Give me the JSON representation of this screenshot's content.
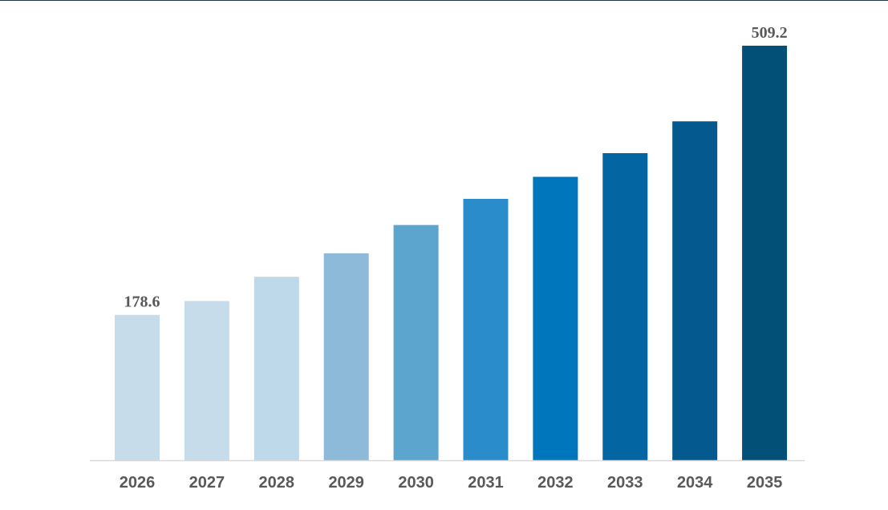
{
  "chart_data": {
    "type": "bar",
    "title": "",
    "xlabel": "",
    "ylabel": "",
    "categories": [
      "2026",
      "2027",
      "2028",
      "2029",
      "2030",
      "2031",
      "2032",
      "2033",
      "2034",
      "2035"
    ],
    "values": [
      178.6,
      195.6,
      225.3,
      254.2,
      289.0,
      321.1,
      348.2,
      377.2,
      416.3,
      509.2
    ],
    "data_labels": [
      {
        "category": "2026",
        "text": "178.6"
      },
      {
        "category": "2035",
        "text": "509.2"
      }
    ],
    "ylim": [
      0,
      509.2
    ],
    "grid": false,
    "legend": "none",
    "colors": [
      "#c7dcea",
      "#c7dcea",
      "#bed9ea",
      "#8cbad8",
      "#5ca5cf",
      "#2a8cca",
      "#0077bd",
      "#0366a3",
      "#045a8e",
      "#024f78"
    ],
    "axis_color": "#d9d9d9"
  }
}
